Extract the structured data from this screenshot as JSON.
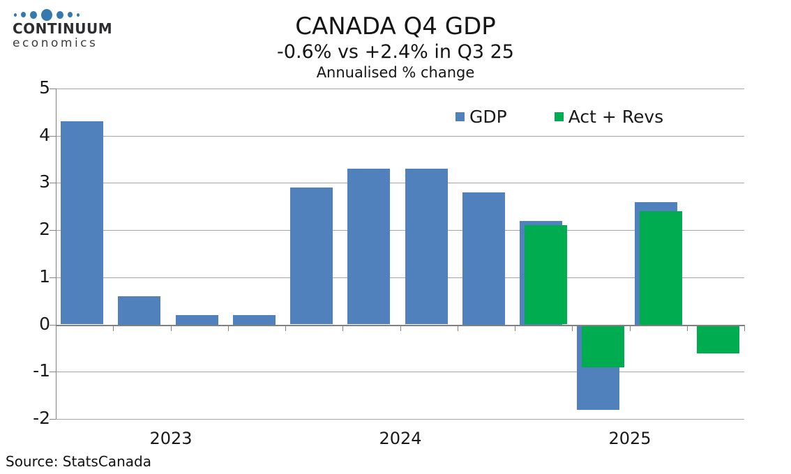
{
  "logo": {
    "brand": "CONTINUUM",
    "sub": "economics",
    "dot_color": "#3579AE",
    "text_color": "#2e2e30"
  },
  "header": {
    "title": "CANADA Q4 GDP",
    "subtitle": "-0.6% vs +2.4% in Q3 25",
    "note": "Annualised % change"
  },
  "legend": [
    {
      "label": "GDP",
      "color": "#5081BD"
    },
    {
      "label": "Act + Revs",
      "color": "#00AC50"
    }
  ],
  "source": "Source: StatsCanada",
  "chart_data": {
    "type": "bar",
    "title": "CANADA Q4 GDP",
    "subtitle": "-0.6% vs +2.4% in Q3 25",
    "units_note": "Annualised % change",
    "categories": [
      "2023 Q1",
      "2023 Q2",
      "2023 Q3",
      "2023 Q4",
      "2024 Q1",
      "2024 Q2",
      "2024 Q3",
      "2024 Q4",
      "2025 Q1",
      "2025 Q2",
      "2025 Q3",
      "2025 Q4"
    ],
    "series": [
      {
        "name": "GDP",
        "color": "#5081BD",
        "values": [
          4.3,
          0.6,
          0.2,
          0.2,
          2.9,
          3.3,
          3.3,
          2.8,
          2.2,
          -1.8,
          2.6,
          null
        ]
      },
      {
        "name": "Act + Revs",
        "color": "#00AC50",
        "values": [
          null,
          null,
          null,
          null,
          null,
          null,
          null,
          null,
          2.1,
          -0.9,
          2.4,
          -0.6
        ]
      }
    ],
    "ylim": [
      -2,
      5
    ],
    "yticks": [
      5,
      4,
      3,
      2,
      1,
      0,
      -1,
      -2
    ],
    "x_year_labels": [
      {
        "label": "2023",
        "slot_center": 1.5
      },
      {
        "label": "2024",
        "slot_center": 5.5
      },
      {
        "label": "2025",
        "slot_center": 9.5
      }
    ],
    "grid": true,
    "gridline_color": "#a6a6a6",
    "axis_color": "#808080",
    "legend_position": "top-right-inside"
  }
}
